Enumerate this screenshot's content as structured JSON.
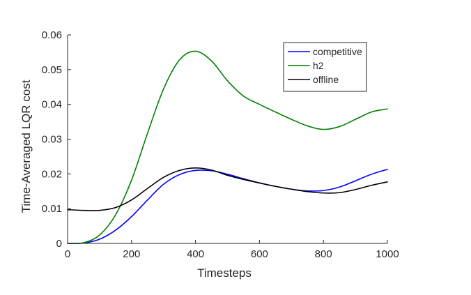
{
  "chart_data": {
    "type": "line",
    "title": "",
    "xlabel": "Timesteps",
    "ylabel": "Time-Averaged LQR cost",
    "xlim": [
      0,
      1000
    ],
    "ylim": [
      0,
      0.06
    ],
    "xticks": [
      0,
      200,
      400,
      600,
      800,
      1000
    ],
    "xtick_labels": [
      "0",
      "200",
      "400",
      "600",
      "800",
      "1000"
    ],
    "yticks": [
      0,
      0.01,
      0.02,
      0.03,
      0.04,
      0.05,
      0.06
    ],
    "ytick_labels": [
      "0",
      "0.01",
      "0.02",
      "0.03",
      "0.04",
      "0.05",
      "0.06"
    ],
    "grid": false,
    "legend_position": "top-right",
    "x": [
      0,
      50,
      100,
      150,
      200,
      250,
      300,
      350,
      400,
      450,
      500,
      550,
      600,
      650,
      700,
      750,
      800,
      850,
      900,
      950,
      1000
    ],
    "series": [
      {
        "name": "competitive",
        "color": "#0000ff",
        "values": [
          0.0,
          0.0001,
          0.0012,
          0.0038,
          0.0077,
          0.0125,
          0.017,
          0.0198,
          0.021,
          0.0209,
          0.0199,
          0.0186,
          0.0174,
          0.0164,
          0.0156,
          0.0151,
          0.0152,
          0.0162,
          0.018,
          0.0199,
          0.0213
        ]
      },
      {
        "name": "h2",
        "color": "#008000",
        "values": [
          0.0,
          0.0002,
          0.0024,
          0.0082,
          0.0182,
          0.0317,
          0.0444,
          0.0528,
          0.0553,
          0.0525,
          0.0468,
          0.0424,
          0.04,
          0.0378,
          0.0357,
          0.0338,
          0.0328,
          0.0336,
          0.0357,
          0.0378,
          0.0387
        ]
      },
      {
        "name": "offline",
        "color": "#000000",
        "values": [
          0.0097,
          0.0095,
          0.0095,
          0.0103,
          0.0125,
          0.0158,
          0.019,
          0.021,
          0.0217,
          0.0211,
          0.0196,
          0.0184,
          0.0174,
          0.0164,
          0.0156,
          0.0149,
          0.0145,
          0.0146,
          0.0155,
          0.0167,
          0.0177
        ]
      }
    ]
  }
}
